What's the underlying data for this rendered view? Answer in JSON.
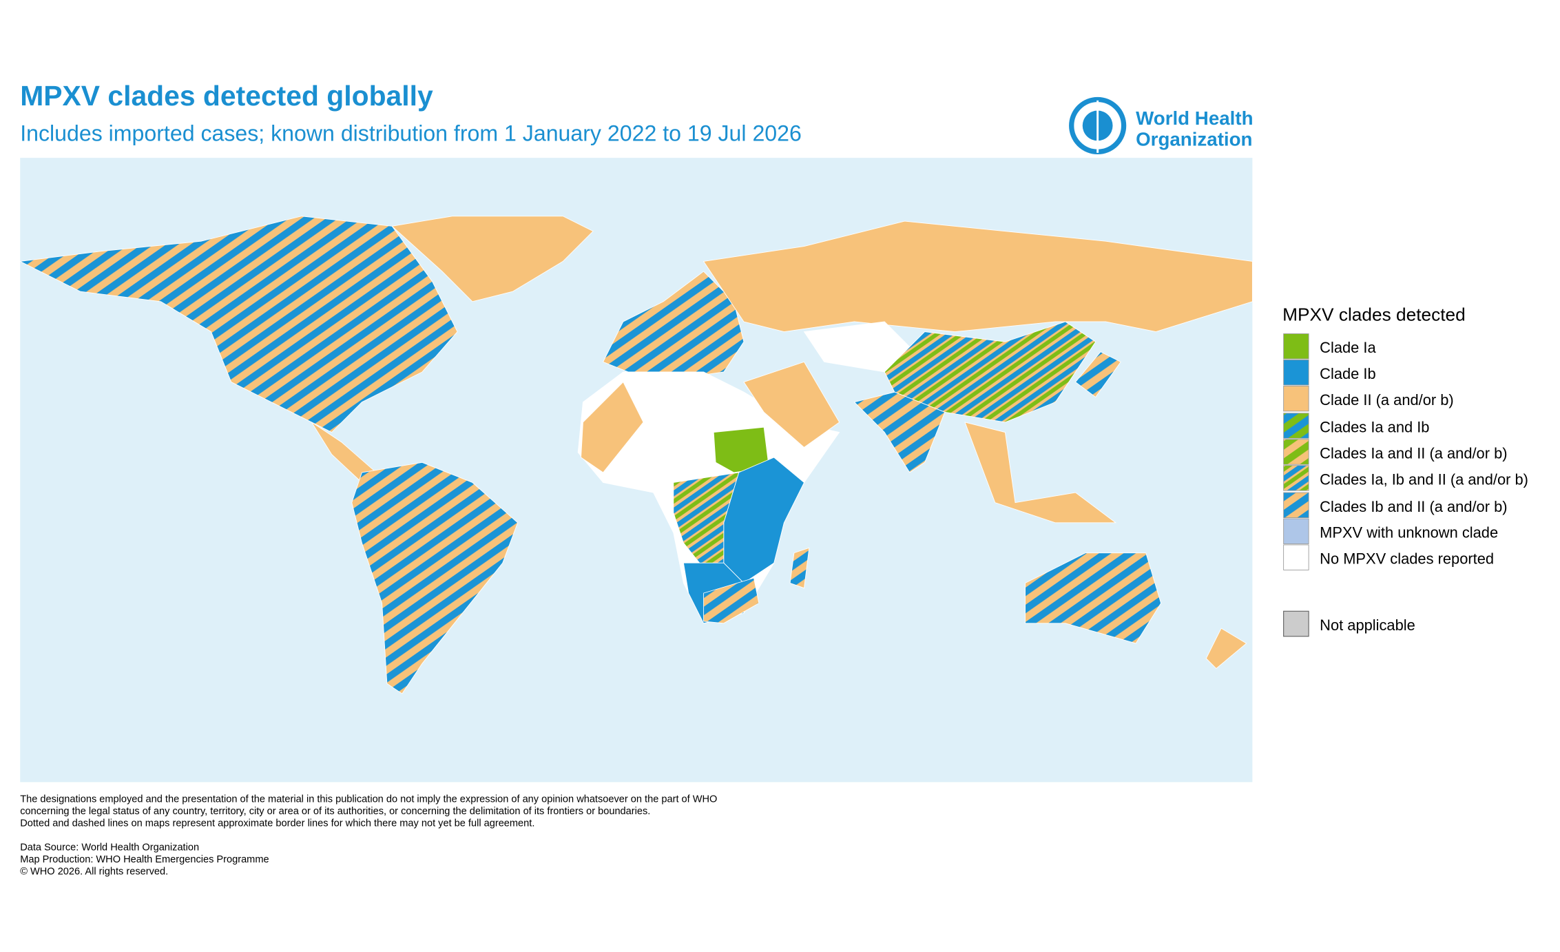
{
  "header": {
    "title": "MPXV clades detected globally",
    "subtitle": "Includes imported cases; known distribution from 1 January 2022 to 19 Jul 2026"
  },
  "logo": {
    "line1": "World Health",
    "line2": "Organization"
  },
  "legend": {
    "title": "MPXV clades detected",
    "items": [
      "Clade Ia",
      "Clade Ib",
      "Clade II (a and/or b)",
      "Clades Ia and Ib",
      "Clades Ia and II (a and/or b)",
      "Clades Ia, Ib and II (a and/or b)",
      "Clades Ib and II (a and/or b)",
      "MPXV with unknown clade",
      "No MPXV clades reported"
    ],
    "not_applicable": "Not applicable"
  },
  "footer": {
    "disclaimer": [
      "The designations employed and the presentation of the material in this publication do not imply the expression of any opinion whatsoever on the part of WHO",
      "concerning the legal status of any country, territory, city or area or of its authorities, or concerning the delimitation of its frontiers or boundaries.",
      "Dotted and dashed lines on maps represent approximate border lines for which there may not yet be full agreement."
    ],
    "credits": [
      "Data Source: World Health Organization",
      "Map Production: WHO Health Emergencies Programme",
      "© WHO 2026. All rights reserved."
    ]
  }
}
